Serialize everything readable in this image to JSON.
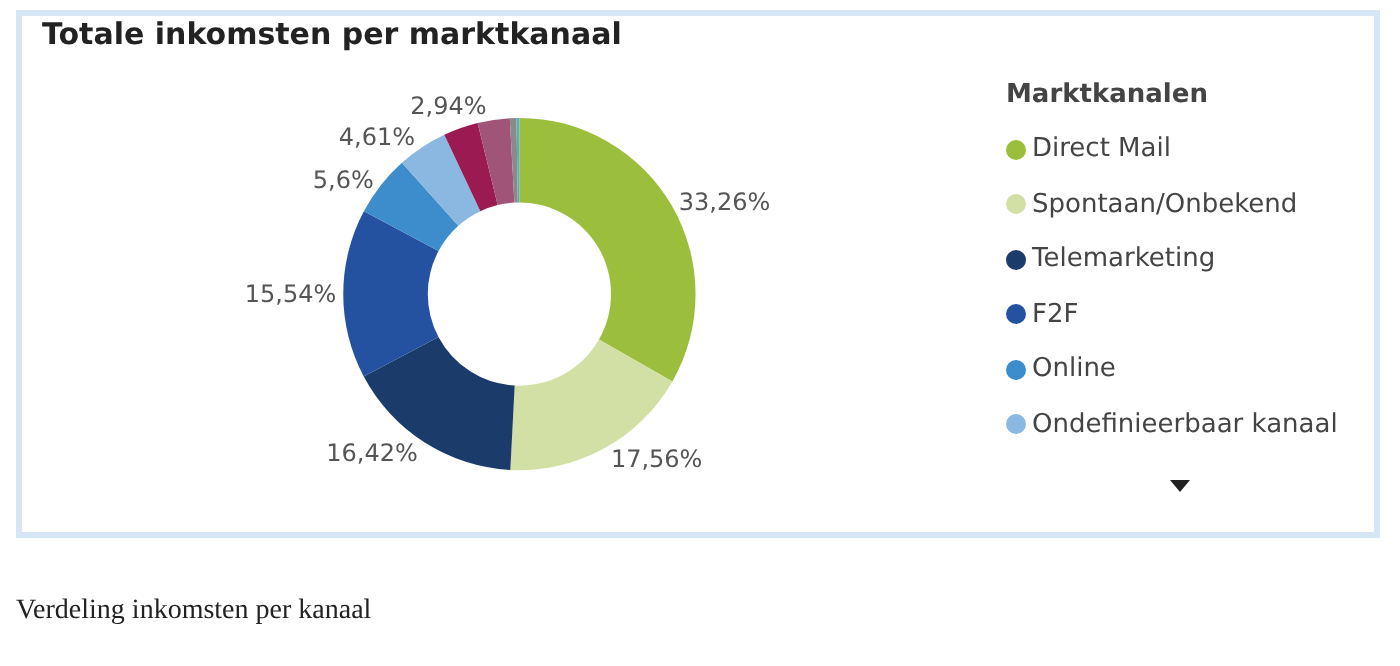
{
  "chart_data": {
    "type": "donut",
    "title": "Totale inkomsten per marktkanaal",
    "legend_title": "Marktkanalen",
    "categories": [
      "Direct Mail",
      "Spontaan/Onbekend",
      "Telemarketing",
      "F2F",
      "Online",
      "Ondefinieerbaar kanaal",
      null,
      null,
      null,
      null
    ],
    "values": [
      33.26,
      17.56,
      16.42,
      15.54,
      5.6,
      4.61,
      3.2,
      2.94,
      0.6,
      0.27
    ],
    "value_labels": [
      "33,26%",
      "17,56%",
      "16,42%",
      "15,54%",
      "5,6%",
      "4,61%",
      null,
      "2,94%",
      null,
      null
    ],
    "colors": [
      "#9bbf3c",
      "#d3e0a5",
      "#1b3c6b",
      "#2451a0",
      "#3d8ccb",
      "#8ab8e0",
      "#9b1a52",
      "#a05478",
      "#8a8a8a",
      "#5bb0b8"
    ],
    "legend": "right",
    "annotations": [
      "Verdeling inkomsten per kanaal"
    ]
  }
}
